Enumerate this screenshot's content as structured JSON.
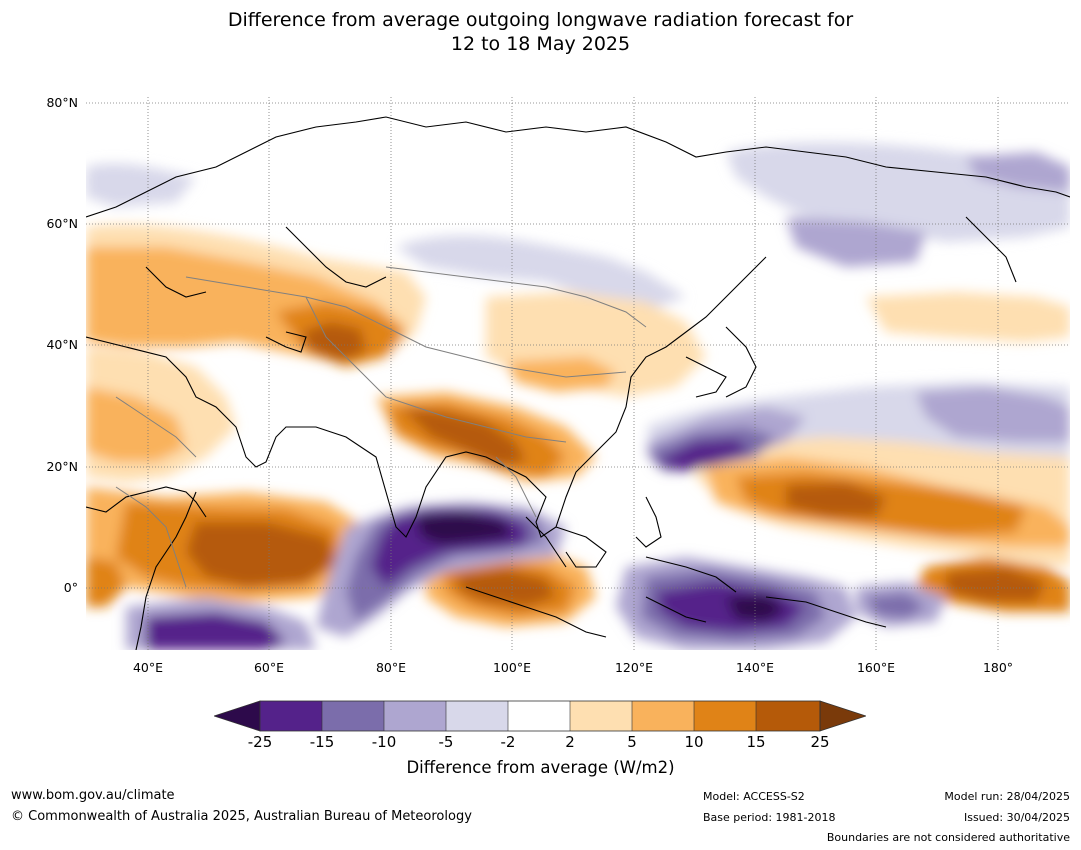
{
  "title": {
    "line1": "Difference from average outgoing longwave radiation forecast for",
    "line2": "12 to 18 May 2025"
  },
  "map": {
    "lat_labels": [
      "80°N",
      "60°N",
      "40°N",
      "20°N",
      "0°"
    ],
    "lon_labels": [
      "40°E",
      "60°E",
      "80°E",
      "100°E",
      "120°E",
      "140°E",
      "160°E",
      "180°"
    ],
    "extent": {
      "lon_min": 30,
      "lon_max": 192,
      "lat_min": -10,
      "lat_max": 81
    }
  },
  "colorbar": {
    "ticks": [
      "-25",
      "-15",
      "-10",
      "-5",
      "-2",
      "2",
      "5",
      "10",
      "15",
      "25"
    ],
    "colors": {
      "below_min": "#2d0a4b",
      "c1": "#54228a",
      "c2": "#7b6dab",
      "c3": "#aea6d0",
      "c4": "#d8d8ea",
      "c5": "#ffffff",
      "c6": "#fedfb1",
      "c7": "#f9b25c",
      "c8": "#e08317",
      "c9": "#b55a09",
      "above_max": "#7a3a0a"
    },
    "label": "Difference from average (W/m2)"
  },
  "footer": {
    "website": "www.bom.gov.au/climate",
    "copyright": "© Commonwealth of Australia 2025, Australian Bureau of Meteorology",
    "model": "Model: ACCESS-S2",
    "base_period": "Base period: 1981-2018",
    "model_run": "Model run: 28/04/2025",
    "issued": "Issued: 30/04/2025",
    "disclaimer": "Boundaries are not considered authoritative"
  }
}
